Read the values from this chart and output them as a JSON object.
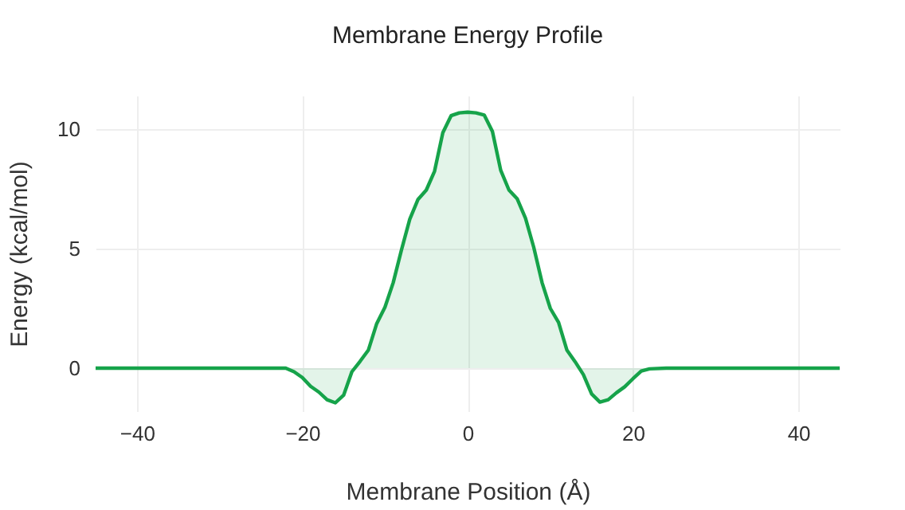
{
  "chart_data": {
    "type": "area",
    "title": "Membrane Energy Profile",
    "xlabel": "Membrane Position (Å)",
    "ylabel": "Energy (kcal/mol)",
    "x": [
      -45,
      -22,
      -21,
      -20,
      -19,
      -18,
      -17,
      -16,
      -15,
      -14,
      -13,
      -12,
      -11,
      -10,
      -9,
      -8,
      -7,
      -6,
      -5,
      -4,
      -3,
      -2,
      -1,
      0,
      1,
      2,
      3,
      4,
      5,
      6,
      7,
      8,
      9,
      10,
      11,
      12,
      13,
      14,
      15,
      16,
      17,
      18,
      19,
      20,
      21,
      22,
      24,
      45
    ],
    "series": [
      {
        "color": "#16a34a",
        "values": [
          0,
          0,
          -0.15,
          -0.39,
          -0.76,
          -1.0,
          -1.32,
          -1.45,
          -1.13,
          -0.15,
          0.29,
          0.76,
          1.86,
          2.55,
          3.58,
          4.95,
          6.23,
          7.06,
          7.45,
          8.24,
          9.85,
          10.56,
          10.68,
          10.71,
          10.68,
          10.59,
          9.9,
          8.28,
          7.45,
          7.08,
          6.27,
          5.05,
          3.58,
          2.5,
          1.91,
          0.76,
          0.27,
          -0.27,
          -1.08,
          -1.42,
          -1.32,
          -1.03,
          -0.78,
          -0.44,
          -0.12,
          -0.03,
          0,
          0
        ]
      }
    ],
    "xlim": [
      -45,
      45
    ],
    "xticks": [
      -40,
      -20,
      0,
      20,
      40
    ],
    "ylim": [
      -1.8,
      11.4
    ],
    "yticks": [
      0,
      5,
      10
    ],
    "grid": true
  }
}
